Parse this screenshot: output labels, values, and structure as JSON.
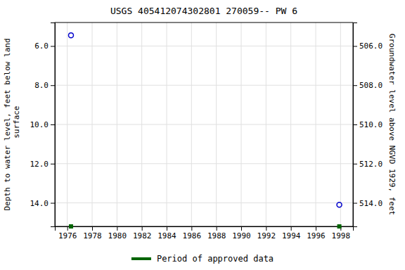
{
  "chart_data": {
    "type": "scatter",
    "title": "USGS 405412074302801 270059-- PW 6",
    "y_label": "Depth to water level, feet below land\n surface",
    "y2_label": "Groundwater level above NGVD 1929, feet",
    "x": [
      1976.3,
      1997.9
    ],
    "series": [
      {
        "values": [
          5.45,
          14.1
        ],
        "color": "#0000cc",
        "marker": "circle"
      },
      {
        "name": "Period of approved data",
        "values": [
          15.2,
          15.2
        ],
        "color": "#006400",
        "marker": "square"
      }
    ],
    "xlim": [
      1975.0,
      1999.0
    ],
    "xticks": [
      1976,
      1978,
      1980,
      1982,
      1984,
      1986,
      1988,
      1990,
      1992,
      1994,
      1996,
      1998
    ],
    "ylim": [
      15.2,
      4.8
    ],
    "yticks": [
      {
        "value": 6.0,
        "label": "6.0"
      },
      {
        "value": 8.0,
        "label": "8.0"
      },
      {
        "value": 10.0,
        "label": "10.0"
      },
      {
        "value": 12.0,
        "label": "12.0"
      },
      {
        "value": 14.0,
        "label": "14.0"
      }
    ],
    "y2lim": [
      515.2,
      504.8
    ],
    "y2ticks": [
      {
        "value": 514.0,
        "label": "514.0"
      },
      {
        "value": 512.0,
        "label": "512.0"
      },
      {
        "value": 510.0,
        "label": "510.0"
      },
      {
        "value": 508.0,
        "label": "508.0"
      },
      {
        "value": 506.0,
        "label": "506.0"
      }
    ],
    "grid": true,
    "legend": "bottom"
  }
}
